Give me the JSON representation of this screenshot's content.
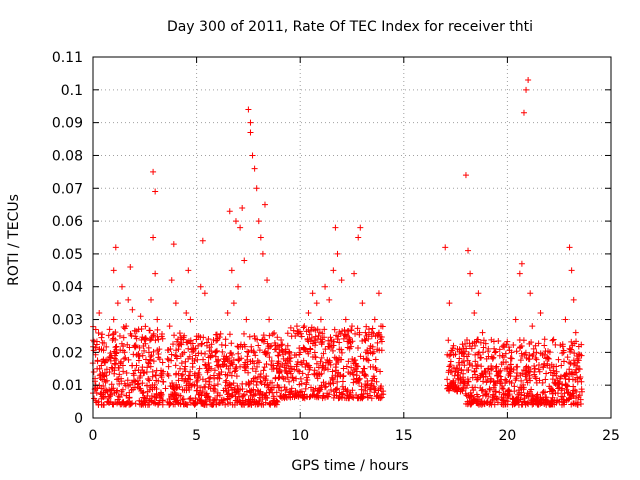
{
  "chart_data": {
    "type": "scatter",
    "title": "Day 300 of 2011, Rate Of TEC Index for receiver thti",
    "xlabel": "GPS time / hours",
    "ylabel": "ROTI / TECUs",
    "xlim": [
      0,
      25
    ],
    "ylim": [
      0,
      0.11
    ],
    "x_ticks": [
      0,
      5,
      10,
      15,
      20,
      25
    ],
    "y_ticks": [
      0,
      0.01,
      0.02,
      0.03,
      0.04,
      0.05,
      0.06,
      0.07,
      0.08,
      0.09,
      0.1,
      0.11
    ],
    "x_tick_labels": [
      "0",
      "5",
      "10",
      "15",
      "20",
      "25"
    ],
    "y_tick_labels": [
      "0",
      "0.01",
      "0.02",
      "0.03",
      "0.04",
      "0.05",
      "0.06",
      "0.07",
      "0.08",
      "0.09",
      "0.1",
      "0.11"
    ],
    "grid": true,
    "marker": "plus",
    "color": "#ff0000",
    "data_gap_hours": [
      14.0,
      17.0
    ],
    "series": [
      {
        "points": [
          [
            0.1,
            0.012
          ],
          [
            0.2,
            0.015
          ],
          [
            0.3,
            0.021
          ],
          [
            0.3,
            0.032
          ],
          [
            0.4,
            0.009
          ],
          [
            0.5,
            0.013
          ],
          [
            0.6,
            0.011
          ],
          [
            0.7,
            0.008
          ],
          [
            0.8,
            0.014
          ],
          [
            0.9,
            0.019
          ],
          [
            1.0,
            0.03
          ],
          [
            1.0,
            0.045
          ],
          [
            1.1,
            0.052
          ],
          [
            1.2,
            0.035
          ],
          [
            1.3,
            0.025
          ],
          [
            1.4,
            0.04
          ],
          [
            1.5,
            0.018
          ],
          [
            1.6,
            0.028
          ],
          [
            1.7,
            0.036
          ],
          [
            1.8,
            0.046
          ],
          [
            1.9,
            0.033
          ],
          [
            2.0,
            0.022
          ],
          [
            2.1,
            0.016
          ],
          [
            2.2,
            0.027
          ],
          [
            2.3,
            0.031
          ],
          [
            2.4,
            0.019
          ],
          [
            2.5,
            0.024
          ],
          [
            2.6,
            0.014
          ],
          [
            2.7,
            0.02
          ],
          [
            2.8,
            0.036
          ],
          [
            2.9,
            0.055
          ],
          [
            2.9,
            0.075
          ],
          [
            3.0,
            0.069
          ],
          [
            3.0,
            0.044
          ],
          [
            3.1,
            0.03
          ],
          [
            3.2,
            0.021
          ],
          [
            3.3,
            0.013
          ],
          [
            3.4,
            0.011
          ],
          [
            3.5,
            0.009
          ],
          [
            3.6,
            0.018
          ],
          [
            3.7,
            0.028
          ],
          [
            3.8,
            0.042
          ],
          [
            3.9,
            0.053
          ],
          [
            4.0,
            0.035
          ],
          [
            4.1,
            0.024
          ],
          [
            4.2,
            0.015
          ],
          [
            4.3,
            0.012
          ],
          [
            4.4,
            0.02
          ],
          [
            4.5,
            0.032
          ],
          [
            4.6,
            0.045
          ],
          [
            4.7,
            0.03
          ],
          [
            4.8,
            0.018
          ],
          [
            4.9,
            0.013
          ],
          [
            5.0,
            0.011
          ],
          [
            5.1,
            0.025
          ],
          [
            5.2,
            0.04
          ],
          [
            5.3,
            0.054
          ],
          [
            5.4,
            0.038
          ],
          [
            5.5,
            0.022
          ],
          [
            5.6,
            0.012
          ],
          [
            5.7,
            0.015
          ],
          [
            5.8,
            0.009
          ],
          [
            5.9,
            0.02
          ],
          [
            6.0,
            0.016
          ],
          [
            6.1,
            0.012
          ],
          [
            6.2,
            0.014
          ],
          [
            6.3,
            0.018
          ],
          [
            6.4,
            0.024
          ],
          [
            6.5,
            0.032
          ],
          [
            6.6,
            0.063
          ],
          [
            6.7,
            0.045
          ],
          [
            6.8,
            0.035
          ],
          [
            6.9,
            0.06
          ],
          [
            7.0,
            0.04
          ],
          [
            7.1,
            0.058
          ],
          [
            7.2,
            0.064
          ],
          [
            7.3,
            0.048
          ],
          [
            7.4,
            0.03
          ],
          [
            7.5,
            0.094
          ],
          [
            7.6,
            0.09
          ],
          [
            7.6,
            0.087
          ],
          [
            7.7,
            0.08
          ],
          [
            7.8,
            0.076
          ],
          [
            7.9,
            0.07
          ],
          [
            8.0,
            0.06
          ],
          [
            8.1,
            0.055
          ],
          [
            8.2,
            0.05
          ],
          [
            8.3,
            0.065
          ],
          [
            8.4,
            0.042
          ],
          [
            8.5,
            0.03
          ],
          [
            8.6,
            0.022
          ],
          [
            8.7,
            0.016
          ],
          [
            8.8,
            0.012
          ],
          [
            8.9,
            0.01
          ],
          [
            9.0,
            0.014
          ],
          [
            9.2,
            0.018
          ],
          [
            9.4,
            0.022
          ],
          [
            9.6,
            0.015
          ],
          [
            9.8,
            0.012
          ],
          [
            10.0,
            0.02
          ],
          [
            10.2,
            0.028
          ],
          [
            10.4,
            0.032
          ],
          [
            10.6,
            0.038
          ],
          [
            10.8,
            0.035
          ],
          [
            11.0,
            0.03
          ],
          [
            11.2,
            0.04
          ],
          [
            11.4,
            0.036
          ],
          [
            11.6,
            0.045
          ],
          [
            11.7,
            0.058
          ],
          [
            11.8,
            0.05
          ],
          [
            12.0,
            0.042
          ],
          [
            12.2,
            0.03
          ],
          [
            12.4,
            0.024
          ],
          [
            12.6,
            0.044
          ],
          [
            12.8,
            0.055
          ],
          [
            12.9,
            0.058
          ],
          [
            13.0,
            0.035
          ],
          [
            13.2,
            0.025
          ],
          [
            13.4,
            0.02
          ],
          [
            13.6,
            0.03
          ],
          [
            13.8,
            0.038
          ],
          [
            13.9,
            0.028
          ],
          [
            17.0,
            0.052
          ],
          [
            17.2,
            0.035
          ],
          [
            17.4,
            0.022
          ],
          [
            17.6,
            0.015
          ],
          [
            17.8,
            0.02
          ],
          [
            18.0,
            0.074
          ],
          [
            18.1,
            0.051
          ],
          [
            18.2,
            0.044
          ],
          [
            18.4,
            0.032
          ],
          [
            18.6,
            0.038
          ],
          [
            18.8,
            0.026
          ],
          [
            19.0,
            0.018
          ],
          [
            19.2,
            0.012
          ],
          [
            19.4,
            0.01
          ],
          [
            19.6,
            0.014
          ],
          [
            19.8,
            0.017
          ],
          [
            20.0,
            0.015
          ],
          [
            20.2,
            0.02
          ],
          [
            20.4,
            0.03
          ],
          [
            20.6,
            0.044
          ],
          [
            20.7,
            0.047
          ],
          [
            20.8,
            0.093
          ],
          [
            20.9,
            0.1
          ],
          [
            21.0,
            0.103
          ],
          [
            21.1,
            0.038
          ],
          [
            21.2,
            0.028
          ],
          [
            21.4,
            0.02
          ],
          [
            21.6,
            0.032
          ],
          [
            21.8,
            0.024
          ],
          [
            22.0,
            0.018
          ],
          [
            22.2,
            0.013
          ],
          [
            22.4,
            0.01
          ],
          [
            22.6,
            0.016
          ],
          [
            22.8,
            0.03
          ],
          [
            23.0,
            0.052
          ],
          [
            23.1,
            0.045
          ],
          [
            23.2,
            0.036
          ],
          [
            23.3,
            0.026
          ],
          [
            23.4,
            0.018
          ],
          [
            23.5,
            0.012
          ],
          [
            23.6,
            0.008
          ]
        ]
      }
    ],
    "dense_bands": [
      {
        "x": [
          0.0,
          3.4
        ],
        "y": [
          0.004,
          0.028
        ]
      },
      {
        "x": [
          3.6,
          9.0
        ],
        "y": [
          0.004,
          0.026
        ]
      },
      {
        "x": [
          9.0,
          14.0
        ],
        "y": [
          0.006,
          0.028
        ]
      },
      {
        "x": [
          17.1,
          18.0
        ],
        "y": [
          0.008,
          0.024
        ]
      },
      {
        "x": [
          18.0,
          23.6
        ],
        "y": [
          0.004,
          0.024
        ]
      }
    ]
  }
}
